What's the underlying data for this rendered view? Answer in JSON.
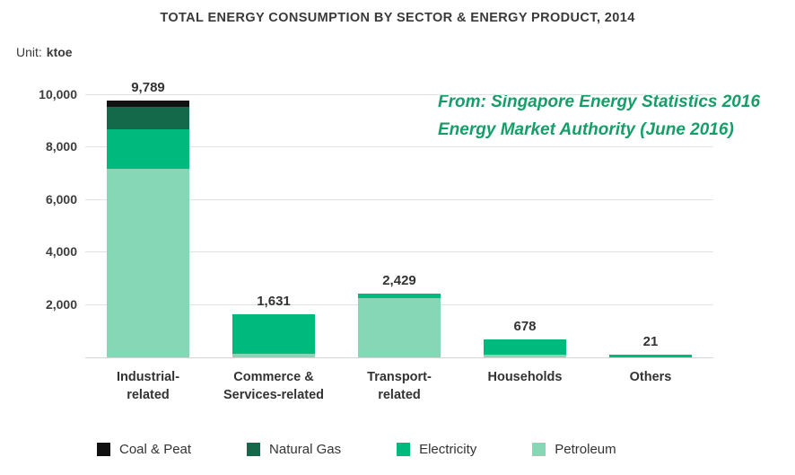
{
  "title": "TOTAL ENERGY CONSUMPTION BY SECTOR & ENERGY PRODUCT, 2014",
  "unit": {
    "label": "Unit:",
    "value": "ktoe"
  },
  "annotation": {
    "line1": "From: Singapore Energy Statistics 2016",
    "line2": "Energy Market Authority (June 2016)",
    "color": "#169e68"
  },
  "chart_data": {
    "type": "bar",
    "stacked": true,
    "title": "TOTAL ENERGY CONSUMPTION BY SECTOR & ENERGY PRODUCT, 2014",
    "unit": "ktoe",
    "categories": [
      "Industrial-related",
      "Commerce & Services-related",
      "Transport-related",
      "Households",
      "Others"
    ],
    "category_label_lines": [
      [
        "Industrial-",
        "related"
      ],
      [
        "Commerce &",
        "Services-related"
      ],
      [
        "Transport-",
        "related"
      ],
      [
        "Households"
      ],
      [
        "Others"
      ]
    ],
    "totals": [
      9789,
      1631,
      2429,
      678,
      21
    ],
    "total_labels": [
      "9,789",
      "1,631",
      "2,429",
      "678",
      "21"
    ],
    "series": [
      {
        "name": "Petroleum",
        "color": "#86d7b6",
        "values": [
          7189,
          151,
          2249,
          118,
          0
        ]
      },
      {
        "name": "Electricity",
        "color": "#00b97c",
        "values": [
          1500,
          1480,
          180,
          560,
          21
        ]
      },
      {
        "name": "Natural Gas",
        "color": "#14694a",
        "values": [
          850,
          0,
          0,
          0,
          0
        ]
      },
      {
        "name": "Coal & Peat",
        "color": "#111111",
        "values": [
          250,
          0,
          0,
          0,
          0
        ]
      }
    ],
    "ylim": [
      0,
      10200
    ],
    "yticks": [
      {
        "value": 2000,
        "label": "2,000"
      },
      {
        "value": 4000,
        "label": "4,000"
      },
      {
        "value": 6000,
        "label": "6,000"
      },
      {
        "value": 8000,
        "label": "8,000"
      },
      {
        "value": 10000,
        "label": "10,000"
      }
    ],
    "grid": true,
    "legend_position": "bottom",
    "legend": [
      {
        "name": "Coal & Peat",
        "color": "#111111"
      },
      {
        "name": "Natural Gas",
        "color": "#14694a"
      },
      {
        "name": "Electricity",
        "color": "#00b97c"
      },
      {
        "name": "Petroleum",
        "color": "#86d7b6"
      }
    ]
  }
}
